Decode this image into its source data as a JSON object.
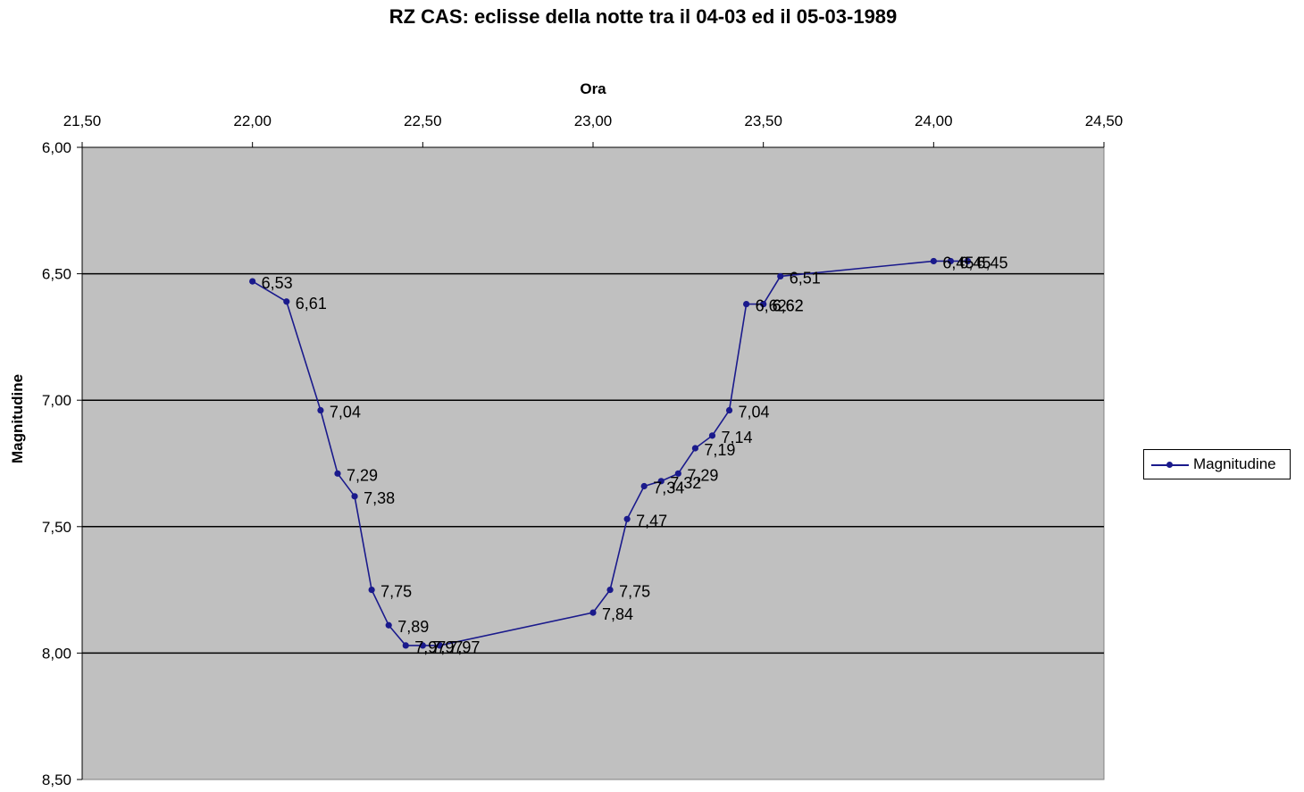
{
  "chart_data": {
    "type": "line",
    "title": "RZ CAS: eclisse della notte tra il 04-03 ed il 05-03-1989",
    "xlabel": "Ora",
    "ylabel": "Magnitudine",
    "x_axis_position": "top",
    "xlim": [
      21.5,
      24.5
    ],
    "ylim": [
      6.0,
      8.5
    ],
    "y_reversed": true,
    "x_ticks": [
      "21,50",
      "22,00",
      "22,50",
      "23,00",
      "23,50",
      "24,00",
      "24,50"
    ],
    "y_ticks": [
      "6,00",
      "6,50",
      "7,00",
      "7,50",
      "8,00",
      "8,50"
    ],
    "grid": "horizontal major",
    "legend_position": "right",
    "colors": {
      "plot_bg": "#c0c0c0",
      "series": "#1a1a8c"
    },
    "series": [
      {
        "name": "Magnitudine",
        "x": [
          22.0,
          22.1,
          22.2,
          22.25,
          22.3,
          22.35,
          22.4,
          22.45,
          22.5,
          22.55,
          23.0,
          23.05,
          23.1,
          23.15,
          23.2,
          23.25,
          23.3,
          23.35,
          23.4,
          23.45,
          23.5,
          23.5,
          23.55,
          24.0,
          24.05,
          24.1
        ],
        "values": [
          6.53,
          6.61,
          7.04,
          7.29,
          7.38,
          7.75,
          7.89,
          7.97,
          7.97,
          7.97,
          7.84,
          7.75,
          7.47,
          7.34,
          7.32,
          7.29,
          7.19,
          7.14,
          7.04,
          6.62,
          6.62,
          6.62,
          6.51,
          6.45,
          6.45,
          6.45
        ],
        "labels": [
          "6,53",
          "6,61",
          "7,04",
          "7,29",
          "7,38",
          "7,75",
          "7,89",
          "7,97",
          "7,97",
          "7,97",
          "7,84",
          "7,75",
          "7,47",
          "7,34",
          "7,32",
          "7,29",
          "7,19",
          "7,14",
          "7,04",
          "6,62",
          "6,62",
          "6,62",
          "6,51",
          "6,45",
          "6,45",
          "6,45"
        ]
      }
    ]
  }
}
